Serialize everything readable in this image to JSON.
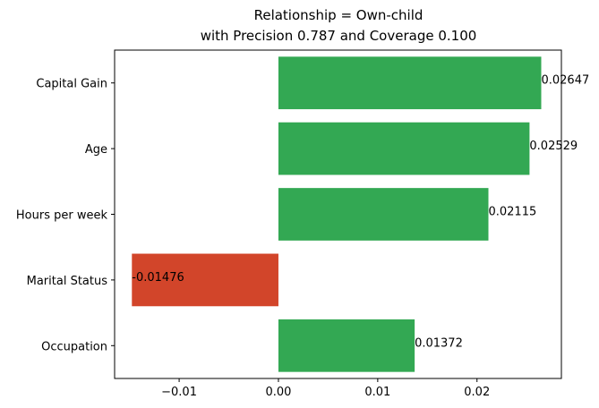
{
  "chart_data": {
    "type": "bar",
    "orientation": "horizontal",
    "title_line1": "Relationship = Own-child",
    "title_line2": "with Precision 0.787 and Coverage 0.100",
    "xlabel": "",
    "ylabel": "",
    "categories": [
      "Capital Gain",
      "Age",
      "Hours per week",
      "Marital Status",
      "Occupation"
    ],
    "values": [
      0.02647,
      0.02529,
      0.02115,
      -0.01476,
      0.01372
    ],
    "value_labels": [
      "0.02647",
      "0.02529",
      "0.02115",
      "-0.01476",
      "0.01372"
    ],
    "xlim": [
      -0.0165,
      0.0285
    ],
    "xticks": [
      -0.01,
      0.0,
      0.01,
      0.02
    ],
    "xtick_labels": [
      "−0.01",
      "0.00",
      "0.01",
      "0.02"
    ],
    "positive_color": "#33a853",
    "negative_color": "#d2452a",
    "grid": false,
    "legend": "none"
  }
}
